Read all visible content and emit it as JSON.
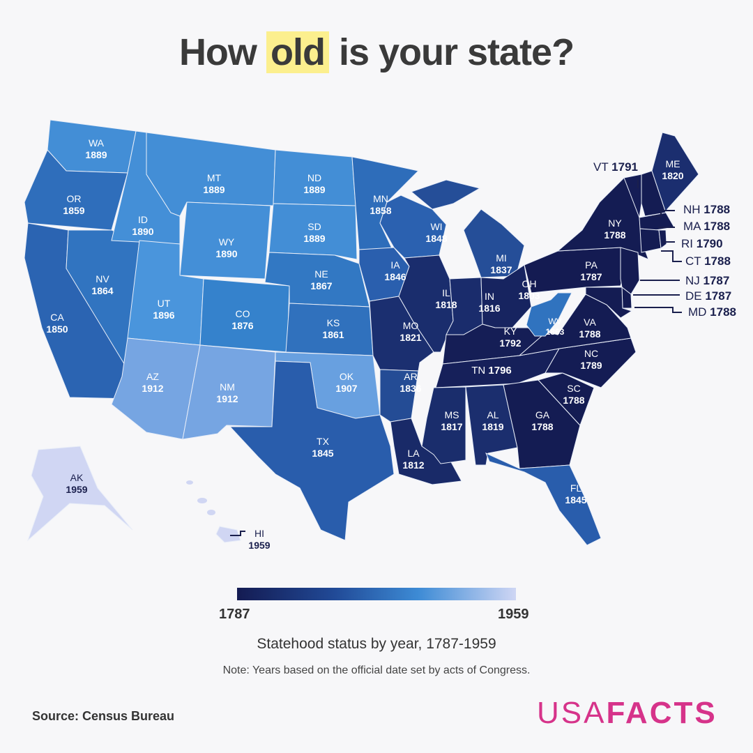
{
  "title": {
    "before": "How",
    "highlight": "old",
    "after": "is your state?"
  },
  "states": [
    {
      "abbr": "WA",
      "year": 1889
    },
    {
      "abbr": "OR",
      "year": 1859
    },
    {
      "abbr": "CA",
      "year": 1850
    },
    {
      "abbr": "NV",
      "year": 1864
    },
    {
      "abbr": "ID",
      "year": 1890
    },
    {
      "abbr": "MT",
      "year": 1889
    },
    {
      "abbr": "WY",
      "year": 1890
    },
    {
      "abbr": "UT",
      "year": 1896
    },
    {
      "abbr": "CO",
      "year": 1876
    },
    {
      "abbr": "AZ",
      "year": 1912
    },
    {
      "abbr": "NM",
      "year": 1912
    },
    {
      "abbr": "ND",
      "year": 1889
    },
    {
      "abbr": "SD",
      "year": 1889
    },
    {
      "abbr": "NE",
      "year": 1867
    },
    {
      "abbr": "KS",
      "year": 1861
    },
    {
      "abbr": "OK",
      "year": 1907
    },
    {
      "abbr": "TX",
      "year": 1845
    },
    {
      "abbr": "MN",
      "year": 1858
    },
    {
      "abbr": "IA",
      "year": 1846
    },
    {
      "abbr": "MO",
      "year": 1821
    },
    {
      "abbr": "AR",
      "year": 1836
    },
    {
      "abbr": "LA",
      "year": 1812
    },
    {
      "abbr": "WI",
      "year": 1848
    },
    {
      "abbr": "IL",
      "year": 1818
    },
    {
      "abbr": "MI",
      "year": 1837
    },
    {
      "abbr": "IN",
      "year": 1816
    },
    {
      "abbr": "OH",
      "year": 1803
    },
    {
      "abbr": "KY",
      "year": 1792
    },
    {
      "abbr": "TN",
      "year": 1796
    },
    {
      "abbr": "MS",
      "year": 1817
    },
    {
      "abbr": "AL",
      "year": 1819
    },
    {
      "abbr": "GA",
      "year": 1788
    },
    {
      "abbr": "FL",
      "year": 1845
    },
    {
      "abbr": "SC",
      "year": 1788
    },
    {
      "abbr": "NC",
      "year": 1789
    },
    {
      "abbr": "VA",
      "year": 1788
    },
    {
      "abbr": "WV",
      "year": 1863
    },
    {
      "abbr": "PA",
      "year": 1787
    },
    {
      "abbr": "NY",
      "year": 1788
    },
    {
      "abbr": "NJ",
      "year": 1787
    },
    {
      "abbr": "DE",
      "year": 1787
    },
    {
      "abbr": "MD",
      "year": 1788
    },
    {
      "abbr": "VT",
      "year": 1791
    },
    {
      "abbr": "NH",
      "year": 1788
    },
    {
      "abbr": "ME",
      "year": 1820
    },
    {
      "abbr": "MA",
      "year": 1788
    },
    {
      "abbr": "CT",
      "year": 1788
    },
    {
      "abbr": "RI",
      "year": 1790
    },
    {
      "abbr": "AK",
      "year": 1959
    },
    {
      "abbr": "HI",
      "year": 1959
    }
  ],
  "legend": {
    "min": "1787",
    "max": "1959",
    "colors": [
      "#141b52",
      "#214a97",
      "#3d8bd5",
      "#cfd6f4"
    ]
  },
  "subtitle": "Statehood status by year, 1787-1959",
  "note": "Note: Years based on the official date set by acts of Congress.",
  "source": "Source: Census Bureau",
  "logo": {
    "light": "USA",
    "bold": "FACTS",
    "color": "#d6338a"
  }
}
